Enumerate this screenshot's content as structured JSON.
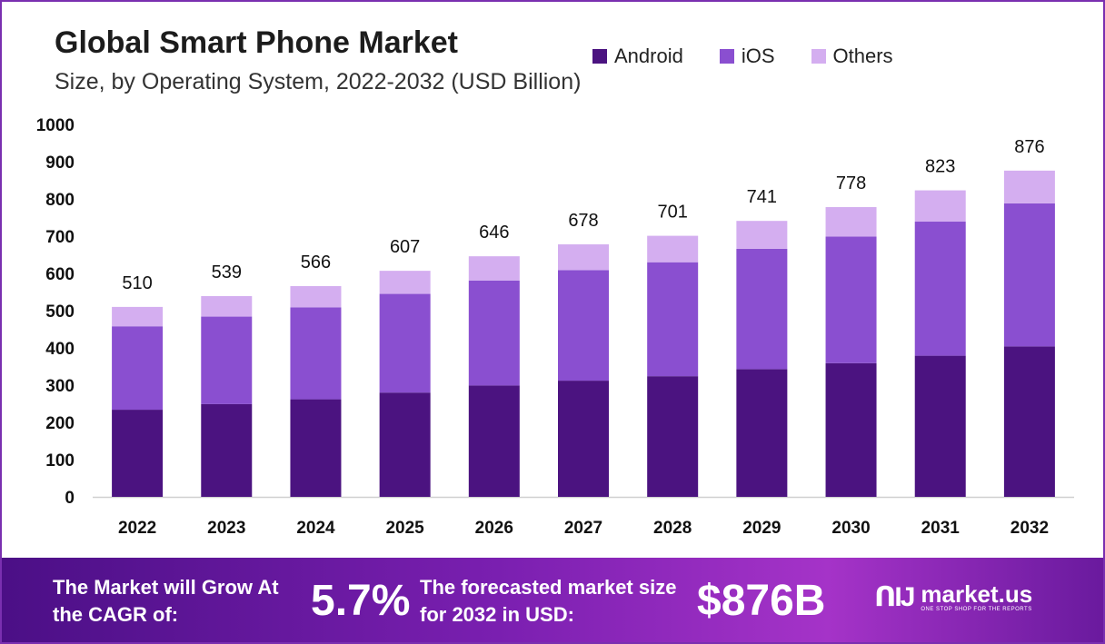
{
  "header": {
    "title": "Global Smart Phone Market",
    "subtitle": "Size, by Operating System, 2022-2032 (USD Billion)"
  },
  "legend": [
    {
      "label": "Android",
      "color": "#4b1380"
    },
    {
      "label": "iOS",
      "color": "#8a4fd0"
    },
    {
      "label": "Others",
      "color": "#d4aef0"
    }
  ],
  "chart_data": {
    "type": "bar",
    "stacked": true,
    "categories": [
      "2022",
      "2023",
      "2024",
      "2025",
      "2026",
      "2027",
      "2028",
      "2029",
      "2030",
      "2031",
      "2032"
    ],
    "series": [
      {
        "name": "Android",
        "color": "#4b1380",
        "values": [
          234,
          249,
          262,
          280,
          299,
          312,
          324,
          343,
          359,
          379,
          404
        ]
      },
      {
        "name": "iOS",
        "color": "#8a4fd0",
        "values": [
          224,
          235,
          247,
          265,
          282,
          297,
          306,
          323,
          340,
          360,
          384
        ]
      },
      {
        "name": "Others",
        "color": "#d4aef0",
        "values": [
          52,
          55,
          57,
          62,
          65,
          69,
          71,
          75,
          79,
          84,
          88
        ]
      }
    ],
    "totals": [
      510,
      539,
      566,
      607,
      646,
      678,
      701,
      741,
      778,
      823,
      876
    ],
    "ylim": [
      0,
      1000
    ],
    "yticks": [
      0,
      100,
      200,
      300,
      400,
      500,
      600,
      700,
      800,
      900,
      1000
    ],
    "xlabel": "",
    "ylabel": "",
    "grid": false,
    "legend_position": "top-right"
  },
  "banner": {
    "text1": "The Market will Grow At the CAGR of:",
    "cagr": "5.7%",
    "text2": "The forecasted market size for 2032 in USD:",
    "value": "$876B",
    "logo_mark": "ᑎIJ",
    "logo_name": "market.us",
    "logo_tagline": "ONE STOP SHOP FOR THE REPORTS"
  }
}
